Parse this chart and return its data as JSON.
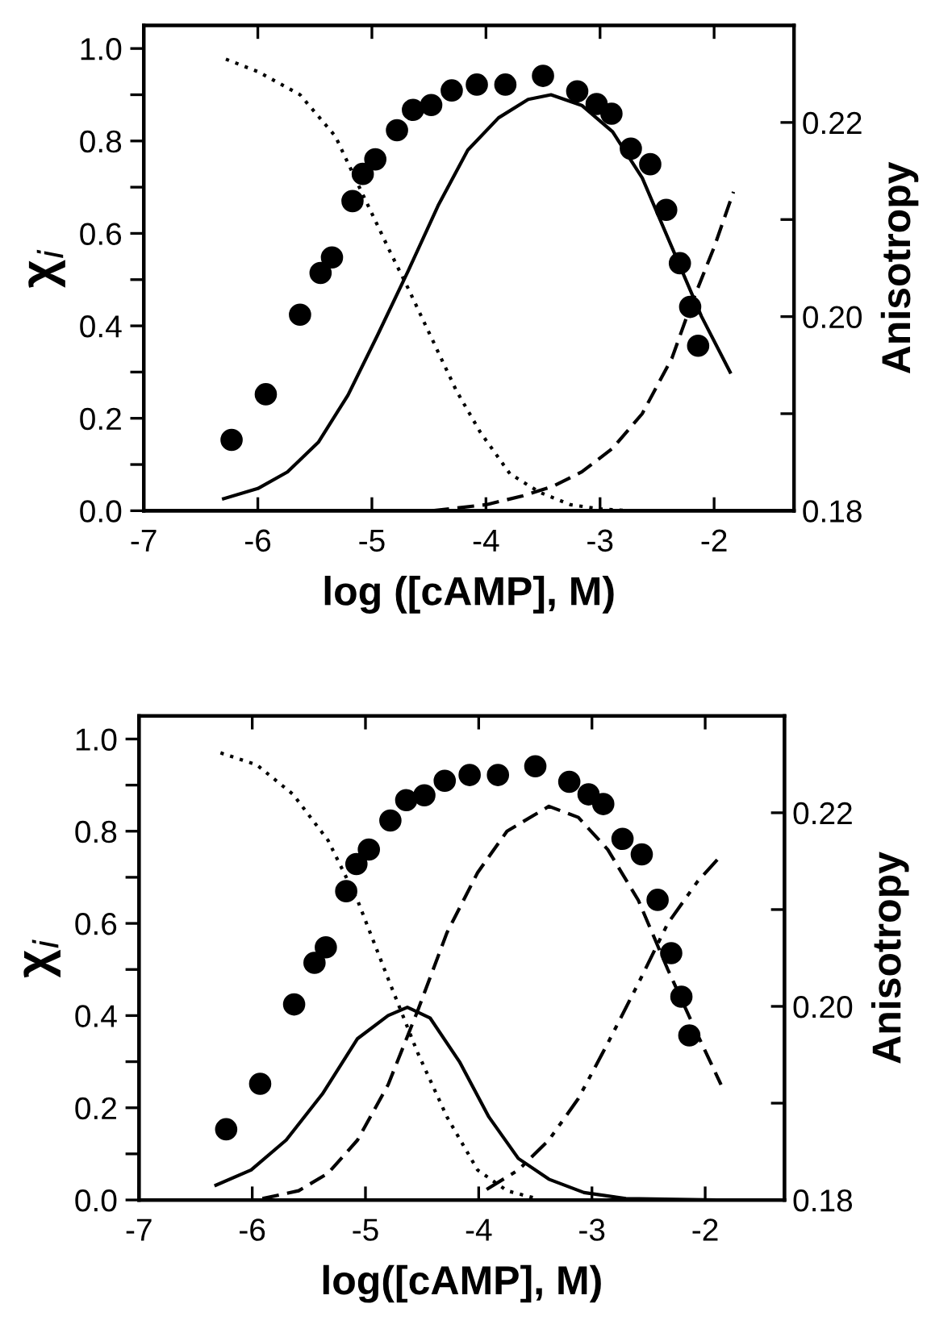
{
  "chart_data": [
    {
      "type": "line",
      "xlabel": "log ([cAMP], M)",
      "ylabel": "χ$_{i}$",
      "y2label": "Anisotropy",
      "xlim": [
        -7,
        -1.3
      ],
      "ylim": [
        0,
        1.05
      ],
      "y2lim": [
        0.18,
        0.23
      ],
      "xticks": [
        -7,
        -6,
        -5,
        -4,
        -3,
        -2
      ],
      "yticks": [
        {
          "value": 0,
          "label": "0.0"
        },
        {
          "value": 0.1,
          "label": null
        },
        {
          "value": 0.2,
          "label": "0.2"
        },
        {
          "value": 0.3,
          "label": null
        },
        {
          "value": 0.4,
          "label": "0.4"
        },
        {
          "value": 0.5,
          "label": null
        },
        {
          "value": 0.6,
          "label": "0.6"
        },
        {
          "value": 0.7,
          "label": null
        },
        {
          "value": 0.8,
          "label": "0.8"
        },
        {
          "value": 0.9,
          "label": null
        },
        {
          "value": 1.0,
          "label": "1.0"
        }
      ],
      "y2ticks": [
        {
          "value": 0.18,
          "label": "0.18"
        },
        {
          "value": 0.19,
          "label": null
        },
        {
          "value": 0.2,
          "label": "0.20"
        },
        {
          "value": 0.21,
          "label": null
        },
        {
          "value": 0.22,
          "label": "0.22"
        }
      ],
      "grid": false,
      "legend": false,
      "series": [
        {
          "type": "scatter",
          "axis": "y2",
          "color": "#000000",
          "marker": "circle",
          "x": [
            -6.23,
            -5.93,
            -5.63,
            -5.45,
            -5.35,
            -5.17,
            -5.08,
            -4.97,
            -4.78,
            -4.64,
            -4.48,
            -4.3,
            -4.08,
            -3.83,
            -3.5,
            -3.2,
            -3.03,
            -2.9,
            -2.73,
            -2.56,
            -2.42,
            -2.3,
            -2.21,
            -2.14
          ],
          "values": [
            0.1873,
            0.192,
            0.2002,
            0.2045,
            0.2061,
            0.2119,
            0.2147,
            0.2162,
            0.2192,
            0.2213,
            0.2218,
            0.2233,
            0.2239,
            0.2239,
            0.2248,
            0.2232,
            0.2219,
            0.2209,
            0.2173,
            0.2157,
            0.211,
            0.2055,
            0.201,
            0.197
          ]
        },
        {
          "color": "#000000",
          "line_style": "dotted",
          "marker": "none",
          "x": [
            -6.28,
            -6.0,
            -5.63,
            -5.32,
            -5.11,
            -4.84,
            -4.68,
            -4.47,
            -4.26,
            -4.05,
            -3.79,
            -3.53,
            -3.26,
            -3.0,
            -2.74
          ],
          "values": [
            0.977,
            0.95,
            0.9,
            0.81,
            0.7,
            0.56,
            0.48,
            0.37,
            0.26,
            0.17,
            0.08,
            0.04,
            0.013,
            0.004,
            0.0
          ]
        },
        {
          "color": "#000000",
          "line_style": "solid",
          "marker": "none",
          "x": [
            -6.3,
            -6.0,
            -5.74,
            -5.47,
            -5.21,
            -4.95,
            -4.68,
            -4.42,
            -4.16,
            -3.89,
            -3.63,
            -3.43,
            -3.16,
            -2.89,
            -2.63,
            -2.37,
            -2.11,
            -1.86
          ],
          "values": [
            0.026,
            0.048,
            0.084,
            0.148,
            0.25,
            0.38,
            0.52,
            0.66,
            0.78,
            0.85,
            0.89,
            0.9,
            0.877,
            0.82,
            0.72,
            0.57,
            0.42,
            0.3
          ]
        },
        {
          "color": "#000000",
          "line_style": "dashed",
          "marker": "none",
          "x": [
            -4.47,
            -4.0,
            -3.68,
            -3.42,
            -3.16,
            -2.89,
            -2.63,
            -2.37,
            -2.21,
            -2.0,
            -1.83
          ],
          "values": [
            0.0,
            0.013,
            0.032,
            0.052,
            0.084,
            0.135,
            0.21,
            0.33,
            0.44,
            0.57,
            0.69
          ]
        }
      ]
    },
    {
      "type": "line",
      "xlabel": "log([cAMP], M)",
      "ylabel": "χ$_{i}$",
      "y2label": "Anisotropy",
      "xlim": [
        -7,
        -1.3
      ],
      "ylim": [
        0,
        1.05
      ],
      "y2lim": [
        0.18,
        0.23
      ],
      "xticks": [
        -7,
        -6,
        -5,
        -4,
        -3,
        -2
      ],
      "yticks": [
        {
          "value": 0,
          "label": "0.0"
        },
        {
          "value": 0.1,
          "label": null
        },
        {
          "value": 0.2,
          "label": "0.2"
        },
        {
          "value": 0.3,
          "label": null
        },
        {
          "value": 0.4,
          "label": "0.4"
        },
        {
          "value": 0.5,
          "label": null
        },
        {
          "value": 0.6,
          "label": "0.6"
        },
        {
          "value": 0.7,
          "label": null
        },
        {
          "value": 0.8,
          "label": "0.8"
        },
        {
          "value": 0.9,
          "label": null
        },
        {
          "value": 1.0,
          "label": "1.0"
        }
      ],
      "y2ticks": [
        {
          "value": 0.18,
          "label": "0.18"
        },
        {
          "value": 0.19,
          "label": null
        },
        {
          "value": 0.2,
          "label": "0.20"
        },
        {
          "value": 0.21,
          "label": null
        },
        {
          "value": 0.22,
          "label": "0.22"
        }
      ],
      "grid": false,
      "legend": false,
      "series": [
        {
          "type": "scatter",
          "axis": "y2",
          "color": "#000000",
          "marker": "circle",
          "x": [
            -6.23,
            -5.93,
            -5.63,
            -5.45,
            -5.35,
            -5.17,
            -5.08,
            -4.97,
            -4.78,
            -4.64,
            -4.48,
            -4.3,
            -4.08,
            -3.83,
            -3.5,
            -3.2,
            -3.03,
            -2.9,
            -2.73,
            -2.56,
            -2.42,
            -2.3,
            -2.21,
            -2.14
          ],
          "values": [
            0.1873,
            0.192,
            0.2002,
            0.2045,
            0.2061,
            0.2119,
            0.2147,
            0.2162,
            0.2192,
            0.2213,
            0.2218,
            0.2233,
            0.2239,
            0.2239,
            0.2248,
            0.2232,
            0.2219,
            0.2209,
            0.2173,
            0.2157,
            0.211,
            0.2055,
            0.201,
            0.197
          ]
        },
        {
          "color": "#000000",
          "line_style": "dotted",
          "marker": "none",
          "x": [
            -6.28,
            -5.96,
            -5.64,
            -5.33,
            -5.07,
            -4.8,
            -4.54,
            -4.28,
            -4.01,
            -3.75,
            -3.49
          ],
          "values": [
            0.97,
            0.944,
            0.88,
            0.78,
            0.65,
            0.48,
            0.32,
            0.18,
            0.065,
            0.02,
            0.003
          ]
        },
        {
          "color": "#000000",
          "line_style": "solid",
          "marker": "none",
          "x": [
            -6.32,
            -6.01,
            -5.7,
            -5.38,
            -5.07,
            -4.8,
            -4.63,
            -4.43,
            -4.17,
            -3.91,
            -3.65,
            -3.38,
            -3.07,
            -2.7,
            -1.91
          ],
          "values": [
            0.032,
            0.065,
            0.13,
            0.23,
            0.35,
            0.4,
            0.418,
            0.395,
            0.3,
            0.18,
            0.09,
            0.045,
            0.016,
            0.003,
            0.0
          ]
        },
        {
          "color": "#000000",
          "line_style": "dashed",
          "marker": "none",
          "x": [
            -5.91,
            -5.59,
            -5.33,
            -5.07,
            -4.8,
            -4.54,
            -4.28,
            -4.01,
            -3.75,
            -3.38,
            -3.12,
            -2.86,
            -2.59,
            -2.33,
            -2.07,
            -1.86
          ],
          "values": [
            0.003,
            0.02,
            0.058,
            0.13,
            0.25,
            0.41,
            0.58,
            0.71,
            0.8,
            0.854,
            0.83,
            0.76,
            0.65,
            0.5,
            0.36,
            0.25
          ]
        },
        {
          "color": "#000000",
          "line_style": "dashdotdot",
          "marker": "none",
          "x": [
            -3.93,
            -3.65,
            -3.38,
            -3.12,
            -2.86,
            -2.59,
            -2.33,
            -2.07,
            -1.85
          ],
          "values": [
            0.023,
            0.065,
            0.13,
            0.22,
            0.34,
            0.47,
            0.6,
            0.69,
            0.75
          ]
        }
      ]
    }
  ]
}
